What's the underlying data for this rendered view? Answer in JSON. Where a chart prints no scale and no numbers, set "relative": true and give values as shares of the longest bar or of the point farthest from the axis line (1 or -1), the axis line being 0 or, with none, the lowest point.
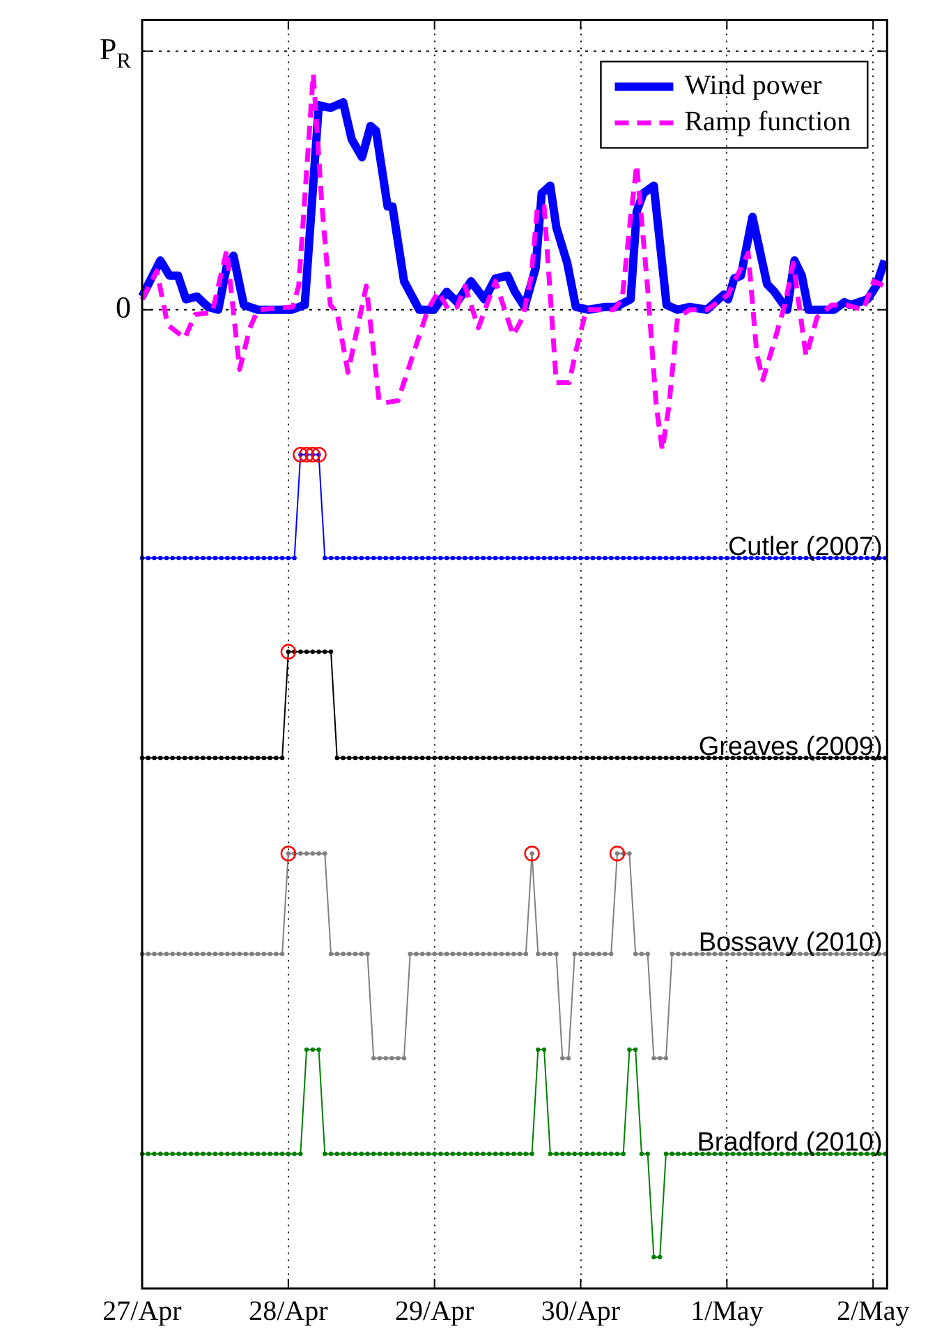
{
  "chart_data": {
    "type": "line",
    "legend": "top right",
    "grid": "x",
    "relative": true,
    "xlim": [
      "--04-27T00:00",
      "--05-02T02:18"
    ],
    "xticks": [
      {
        "value": "--04-27",
        "label": "27/Apr"
      },
      {
        "value": "--04-28",
        "label": "28/Apr"
      },
      {
        "value": "--04-29",
        "label": "29/Apr"
      },
      {
        "value": "--04-30",
        "label": "30/Apr"
      },
      {
        "value": "--05-01",
        "label": "1/May"
      },
      {
        "value": "--05-02",
        "label": "2/May"
      }
    ],
    "ref_lines": [
      {
        "axis": "y",
        "value": 0,
        "label": "0",
        "line_style": "dotted"
      },
      {
        "axis": "y",
        "value": 0.273,
        "label": "P$_{R}$",
        "line_style": "dotted"
      }
    ],
    "x": [
      "--04-27T00:00",
      "--04-27T01:00",
      "--04-27T02:00",
      "--04-27T03:00",
      "--04-27T04:00",
      "--04-27T05:00",
      "--04-27T06:00",
      "--04-27T07:00",
      "--04-27T08:00",
      "--04-27T09:00",
      "--04-27T10:00",
      "--04-27T11:00",
      "--04-27T12:00",
      "--04-27T13:00",
      "--04-27T14:00",
      "--04-27T15:00",
      "--04-27T16:00",
      "--04-27T17:00",
      "--04-27T18:00",
      "--04-27T19:00",
      "--04-27T20:00",
      "--04-27T21:00",
      "--04-27T22:00",
      "--04-27T23:00",
      "--04-28T00:00",
      "--04-28T01:00",
      "--04-28T02:00",
      "--04-28T03:00",
      "--04-28T04:00",
      "--04-28T05:00",
      "--04-28T06:00",
      "--04-28T07:00",
      "--04-28T08:00",
      "--04-28T09:00",
      "--04-28T10:00",
      "--04-28T11:00",
      "--04-28T12:00",
      "--04-28T13:00",
      "--04-28T14:00",
      "--04-28T15:00",
      "--04-28T16:00",
      "--04-28T17:00",
      "--04-28T18:00",
      "--04-28T19:00",
      "--04-28T20:00",
      "--04-28T21:00",
      "--04-28T22:00",
      "--04-28T23:00",
      "--04-29T00:00",
      "--04-29T01:00",
      "--04-29T02:00",
      "--04-29T03:00",
      "--04-29T04:00",
      "--04-29T05:00",
      "--04-29T06:00",
      "--04-29T07:00",
      "--04-29T08:00",
      "--04-29T09:00",
      "--04-29T10:00",
      "--04-29T11:00",
      "--04-29T12:00",
      "--04-29T13:00",
      "--04-29T14:00",
      "--04-29T15:00",
      "--04-29T16:00",
      "--04-29T17:00",
      "--04-29T18:00",
      "--04-29T19:00",
      "--04-29T20:00",
      "--04-29T21:00",
      "--04-29T22:00",
      "--04-29T23:00",
      "--04-30T00:00",
      "--04-30T01:00",
      "--04-30T02:00",
      "--04-30T03:00",
      "--04-30T04:00",
      "--04-30T05:00",
      "--04-30T06:00",
      "--04-30T07:00",
      "--04-30T08:00",
      "--04-30T09:00",
      "--04-30T10:00",
      "--04-30T11:00",
      "--04-30T12:00",
      "--04-30T13:00",
      "--04-30T14:00",
      "--04-30T15:00",
      "--04-30T16:00",
      "--04-30T17:00",
      "--04-30T18:00",
      "--04-30T19:00",
      "--04-30T20:00",
      "--04-30T21:00",
      "--04-30T22:00",
      "--04-30T23:00",
      "--05-01T00:00",
      "--05-01T01:00",
      "--05-01T02:00",
      "--05-01T03:00",
      "--05-01T04:00",
      "--05-01T05:00",
      "--05-01T06:00",
      "--05-01T07:00",
      "--05-01T08:00",
      "--05-01T09:00",
      "--05-01T10:00",
      "--05-01T11:00",
      "--05-01T12:00",
      "--05-01T13:00",
      "--05-01T14:00",
      "--05-01T15:00",
      "--05-01T16:00",
      "--05-01T17:00",
      "--05-01T18:00",
      "--05-01T19:00",
      "--05-01T20:00",
      "--05-01T21:00",
      "--05-01T22:00",
      "--05-01T23:00",
      "--05-02T00:00",
      "--05-02T01:00",
      "--05-02T02:00"
    ],
    "series": [
      {
        "name": "Wind power",
        "color": "#0000ff",
        "marker": "none",
        "line_style": "solid",
        "x": [
          "--04-27T00:00",
          "--04-27T03:00",
          "--04-27T04:30",
          "--04-27T05:54",
          "--04-27T07:12",
          "--04-27T09:00",
          "--04-27T10:48",
          "--04-27T12:30",
          "--04-27T13:54",
          "--04-27T15:00",
          "--04-27T16:42",
          "--04-27T19:00",
          "--04-28T00:30",
          "--04-28T02:42",
          "--04-28T05:00",
          "--04-28T06:54",
          "--04-28T09:00",
          "--04-28T10:24",
          "--04-28T12:06",
          "--04-28T13:30",
          "--04-28T14:24",
          "--04-28T16:18",
          "--04-28T17:06",
          "--04-28T19:00",
          "--04-28T21:30",
          "--04-28T23:54",
          "--04-29T02:00",
          "--04-29T03:42",
          "--04-29T06:00",
          "--04-29T08:12",
          "--04-29T10:00",
          "--04-29T12:00",
          "--04-29T13:12",
          "--04-29T14:48",
          "--04-29T16:36",
          "--04-29T17:36",
          "--04-29T19:00",
          "--04-29T20:00",
          "--04-29T21:48",
          "--04-29T23:12",
          "--04-30T01:18",
          "--04-30T04:00",
          "--04-30T05:48",
          "--04-30T08:12",
          "--04-30T09:12",
          "--04-30T10:18",
          "--04-30T12:00",
          "--04-30T14:06",
          "--04-30T15:54",
          "--04-30T17:54",
          "--04-30T20:42",
          "--04-30T23:30",
          "--05-01T00:12",
          "--05-01T01:12",
          "--05-01T02:18",
          "--05-01T04:12",
          "--05-01T06:36",
          "--05-01T07:48",
          "--05-01T09:54",
          "--05-01T11:06",
          "--05-01T12:18",
          "--05-01T13:24",
          "--05-01T17:36",
          "--05-01T19:18",
          "--05-01T20:18",
          "--05-01T23:06",
          "--05-02T00:30",
          "--05-02T01:54"
        ],
        "values": [
          0.014,
          0.052,
          0.036,
          0.036,
          0.011,
          0.014,
          0.003,
          0,
          0.046,
          0.057,
          0.005,
          0,
          0,
          0.005,
          0.216,
          0.213,
          0.219,
          0.18,
          0.161,
          0.194,
          0.189,
          0.109,
          0.109,
          0.03,
          0,
          0,
          0.019,
          0.008,
          0.03,
          0.011,
          0.033,
          0.036,
          0.019,
          0.003,
          0.044,
          0.123,
          0.131,
          0.087,
          0.049,
          0.003,
          0,
          0.003,
          0.003,
          0.011,
          0.104,
          0.123,
          0.131,
          0.005,
          0,
          0.003,
          0,
          0.016,
          0.011,
          0.033,
          0.036,
          0.098,
          0.027,
          0.019,
          0,
          0.052,
          0.036,
          0,
          0,
          0.008,
          0.005,
          0.011,
          0.025,
          0.052
        ]
      },
      {
        "name": "Ramp function",
        "color": "#ff00ff",
        "marker": "none",
        "line_style": "dashed",
        "x": [
          "--04-27T00:00",
          "--04-27T02:24",
          "--04-27T04:12",
          "--04-27T07:00",
          "--04-27T08:42",
          "--04-27T11:30",
          "--04-27T13:54",
          "--04-27T16:00",
          "--04-27T17:42",
          "--04-27T19:00",
          "--04-28T00:42",
          "--04-28T01:42",
          "--04-28T04:06",
          "--04-28T05:30",
          "--04-28T06:54",
          "--04-28T08:00",
          "--04-28T09:48",
          "--04-28T12:48",
          "--04-28T14:54",
          "--04-28T15:54",
          "--04-28T18:00",
          "--04-28T20:48",
          "--04-28T22:54",
          "--04-29T00:36",
          "--04-29T02:18",
          "--04-29T03:42",
          "--04-29T05:00",
          "--04-29T07:12",
          "--04-29T10:00",
          "--04-29T12:54",
          "--04-29T14:30",
          "--04-29T15:54",
          "--04-29T16:54",
          "--04-29T18:00",
          "--04-29T20:00",
          "--04-29T22:06",
          "--04-29T23:12",
          "--04-30T00:54",
          "--04-30T05:24",
          "--04-30T06:48",
          "--04-30T08:12",
          "--04-30T09:12",
          "--04-30T11:00",
          "--04-30T12:24",
          "--04-30T13:24",
          "--04-30T14:30",
          "--04-30T15:54",
          "--04-30T17:54",
          "--04-30T20:42",
          "--05-01T00:12",
          "--05-01T03:30",
          "--05-01T04:54",
          "--05-01T05:54",
          "--05-01T07:48",
          "--05-01T09:30",
          "--05-01T10:54",
          "--05-01T13:00",
          "--05-01T14:48",
          "--05-01T17:12",
          "--05-01T19:36",
          "--05-01T22:24",
          "--05-02T00:06",
          "--05-02T01:54"
        ],
        "values": [
          0.011,
          0.041,
          -0.016,
          -0.03,
          -0.005,
          -0.003,
          0.063,
          -0.063,
          -0.019,
          0,
          0.003,
          0.025,
          0.249,
          0.112,
          0.005,
          -0.003,
          -0.066,
          0.025,
          -0.096,
          -0.098,
          -0.096,
          -0.041,
          0,
          0.019,
          0,
          0.003,
          0.025,
          -0.019,
          0.03,
          -0.027,
          -0.008,
          0.036,
          0.109,
          0.109,
          -0.077,
          -0.077,
          -0.044,
          0,
          0,
          0.011,
          0.098,
          0.153,
          0.022,
          -0.101,
          -0.148,
          -0.101,
          -0.008,
          0,
          0,
          0.016,
          0.06,
          -0.046,
          -0.074,
          -0.033,
          0.005,
          0.049,
          -0.049,
          -0.008,
          0.005,
          0.005,
          0,
          0.03,
          0.025
        ]
      },
      {
        "name": "Cutler (2007)",
        "color": "#0000ff",
        "marker": "circle",
        "line_style": "solid",
        "values": [
          -0.262,
          -0.262,
          -0.262,
          -0.262,
          -0.262,
          -0.262,
          -0.262,
          -0.262,
          -0.262,
          -0.262,
          -0.262,
          -0.262,
          -0.262,
          -0.262,
          -0.262,
          -0.262,
          -0.262,
          -0.262,
          -0.262,
          -0.262,
          -0.262,
          -0.262,
          -0.262,
          -0.262,
          -0.262,
          -0.262,
          -0.153,
          -0.153,
          -0.153,
          -0.153,
          -0.262,
          -0.262,
          -0.262,
          -0.262,
          -0.262,
          -0.262,
          -0.262,
          -0.262,
          -0.262,
          -0.262,
          -0.262,
          -0.262,
          -0.262,
          -0.262,
          -0.262,
          -0.262,
          -0.262,
          -0.262,
          -0.262,
          -0.262,
          -0.262,
          -0.262,
          -0.262,
          -0.262,
          -0.262,
          -0.262,
          -0.262,
          -0.262,
          -0.262,
          -0.262,
          -0.262,
          -0.262,
          -0.262,
          -0.262,
          -0.262,
          -0.262,
          -0.262,
          -0.262,
          -0.262,
          -0.262,
          -0.262,
          -0.262,
          -0.262,
          -0.262,
          -0.262,
          -0.262,
          -0.262,
          -0.262,
          -0.262,
          -0.262,
          -0.262,
          -0.262,
          -0.262,
          -0.262,
          -0.262,
          -0.262,
          -0.262,
          -0.262,
          -0.262,
          -0.262,
          -0.262,
          -0.262,
          -0.262,
          -0.262,
          -0.262,
          -0.262,
          -0.262,
          -0.262,
          -0.262,
          -0.262,
          -0.262,
          -0.262,
          -0.262,
          -0.262,
          -0.262,
          -0.262,
          -0.262,
          -0.262,
          -0.262,
          -0.262,
          -0.262,
          -0.262,
          -0.262,
          -0.262,
          -0.262,
          -0.262,
          -0.262,
          -0.262,
          -0.262,
          -0.262,
          -0.262,
          -0.262,
          -0.262
        ]
      },
      {
        "name": "Greaves (2009)",
        "color": "#000000",
        "marker": "circle",
        "line_style": "solid",
        "values": [
          -0.473,
          -0.473,
          -0.473,
          -0.473,
          -0.473,
          -0.473,
          -0.473,
          -0.473,
          -0.473,
          -0.473,
          -0.473,
          -0.473,
          -0.473,
          -0.473,
          -0.473,
          -0.473,
          -0.473,
          -0.473,
          -0.473,
          -0.473,
          -0.473,
          -0.473,
          -0.473,
          -0.473,
          -0.361,
          -0.361,
          -0.361,
          -0.361,
          -0.361,
          -0.361,
          -0.361,
          -0.361,
          -0.473,
          -0.473,
          -0.473,
          -0.473,
          -0.473,
          -0.473,
          -0.473,
          -0.473,
          -0.473,
          -0.473,
          -0.473,
          -0.473,
          -0.473,
          -0.473,
          -0.473,
          -0.473,
          -0.473,
          -0.473,
          -0.473,
          -0.473,
          -0.473,
          -0.473,
          -0.473,
          -0.473,
          -0.473,
          -0.473,
          -0.473,
          -0.473,
          -0.473,
          -0.473,
          -0.473,
          -0.473,
          -0.473,
          -0.473,
          -0.473,
          -0.473,
          -0.473,
          -0.473,
          -0.473,
          -0.473,
          -0.473,
          -0.473,
          -0.473,
          -0.473,
          -0.473,
          -0.473,
          -0.473,
          -0.473,
          -0.473,
          -0.473,
          -0.473,
          -0.473,
          -0.473,
          -0.473,
          -0.473,
          -0.473,
          -0.473,
          -0.473,
          -0.473,
          -0.473,
          -0.473,
          -0.473,
          -0.473,
          -0.473,
          -0.473,
          -0.473,
          -0.473,
          -0.473,
          -0.473,
          -0.473,
          -0.473,
          -0.473,
          -0.473,
          -0.473,
          -0.473,
          -0.473,
          -0.473,
          -0.473,
          -0.473,
          -0.473,
          -0.473,
          -0.473,
          -0.473,
          -0.473,
          -0.473,
          -0.473,
          -0.473,
          -0.473,
          -0.473,
          -0.473,
          -0.473
        ]
      },
      {
        "name": "Bossavy (2010)",
        "color": "#808080",
        "marker": "circle",
        "line_style": "solid",
        "values": [
          -0.68,
          -0.68,
          -0.68,
          -0.68,
          -0.68,
          -0.68,
          -0.68,
          -0.68,
          -0.68,
          -0.68,
          -0.68,
          -0.68,
          -0.68,
          -0.68,
          -0.68,
          -0.68,
          -0.68,
          -0.68,
          -0.68,
          -0.68,
          -0.68,
          -0.68,
          -0.68,
          -0.68,
          -0.574,
          -0.574,
          -0.574,
          -0.574,
          -0.574,
          -0.574,
          -0.574,
          -0.68,
          -0.68,
          -0.68,
          -0.68,
          -0.68,
          -0.68,
          -0.68,
          -0.79,
          -0.79,
          -0.79,
          -0.79,
          -0.79,
          -0.79,
          -0.68,
          -0.68,
          -0.68,
          -0.68,
          -0.68,
          -0.68,
          -0.68,
          -0.68,
          -0.68,
          -0.68,
          -0.68,
          -0.68,
          -0.68,
          -0.68,
          -0.68,
          -0.68,
          -0.68,
          -0.68,
          -0.68,
          -0.68,
          -0.574,
          -0.68,
          -0.68,
          -0.68,
          -0.68,
          -0.79,
          -0.79,
          -0.68,
          -0.68,
          -0.68,
          -0.68,
          -0.68,
          -0.68,
          -0.68,
          -0.574,
          -0.574,
          -0.574,
          -0.68,
          -0.68,
          -0.68,
          -0.79,
          -0.79,
          -0.79,
          -0.68,
          -0.68,
          -0.68,
          -0.68,
          -0.68,
          -0.68,
          -0.68,
          -0.68,
          -0.68,
          -0.68,
          -0.68,
          -0.68,
          -0.68,
          -0.68,
          -0.68,
          -0.68,
          -0.68,
          -0.68,
          -0.68,
          -0.68,
          -0.68,
          -0.68,
          -0.68,
          -0.68,
          -0.68,
          -0.68,
          -0.68,
          -0.68,
          -0.68,
          -0.68,
          -0.68,
          -0.68,
          -0.68,
          -0.68,
          -0.68,
          -0.68
        ]
      },
      {
        "name": "Bradford (2010)",
        "color": "#008000",
        "marker": "circle",
        "line_style": "solid",
        "values": [
          -0.891,
          -0.891,
          -0.891,
          -0.891,
          -0.891,
          -0.891,
          -0.891,
          -0.891,
          -0.891,
          -0.891,
          -0.891,
          -0.891,
          -0.891,
          -0.891,
          -0.891,
          -0.891,
          -0.891,
          -0.891,
          -0.891,
          -0.891,
          -0.891,
          -0.891,
          -0.891,
          -0.891,
          -0.891,
          -0.891,
          -0.891,
          -0.781,
          -0.781,
          -0.781,
          -0.891,
          -0.891,
          -0.891,
          -0.891,
          -0.891,
          -0.891,
          -0.891,
          -0.891,
          -0.891,
          -0.891,
          -0.891,
          -0.891,
          -0.891,
          -0.891,
          -0.891,
          -0.891,
          -0.891,
          -0.891,
          -0.891,
          -0.891,
          -0.891,
          -0.891,
          -0.891,
          -0.891,
          -0.891,
          -0.891,
          -0.891,
          -0.891,
          -0.891,
          -0.891,
          -0.891,
          -0.891,
          -0.891,
          -0.891,
          -0.891,
          -0.781,
          -0.781,
          -0.891,
          -0.891,
          -0.891,
          -0.891,
          -0.891,
          -0.891,
          -0.891,
          -0.891,
          -0.891,
          -0.891,
          -0.891,
          -0.891,
          -0.891,
          -0.781,
          -0.781,
          -0.891,
          -0.891,
          -1,
          -1,
          -0.891,
          -0.891,
          -0.891,
          -0.891,
          -0.891,
          -0.891,
          -0.891,
          -0.891,
          -0.891,
          -0.891,
          -0.891,
          -0.891,
          -0.891,
          -0.891,
          -0.891,
          -0.891,
          -0.891,
          -0.891,
          -0.891,
          -0.891,
          -0.891,
          -0.891,
          -0.891,
          -0.891,
          -0.891,
          -0.891,
          -0.891,
          -0.891,
          -0.891,
          -0.891,
          -0.891,
          -0.891,
          -0.891,
          -0.891,
          -0.891,
          -0.891,
          -0.891
        ]
      },
      {
        "type": "scatter",
        "color": "#ff0000",
        "marker": "circle",
        "x": [
          "--04-28T02:00",
          "--04-28T03:00",
          "--04-28T04:00",
          "--04-28T05:00",
          "--04-28T00:00",
          "--04-28T00:00",
          "--04-29T16:00",
          "--04-30T06:00"
        ],
        "values": [
          -0.153,
          -0.153,
          -0.153,
          -0.153,
          -0.361,
          -0.574,
          -0.574,
          -0.574
        ]
      }
    ]
  }
}
